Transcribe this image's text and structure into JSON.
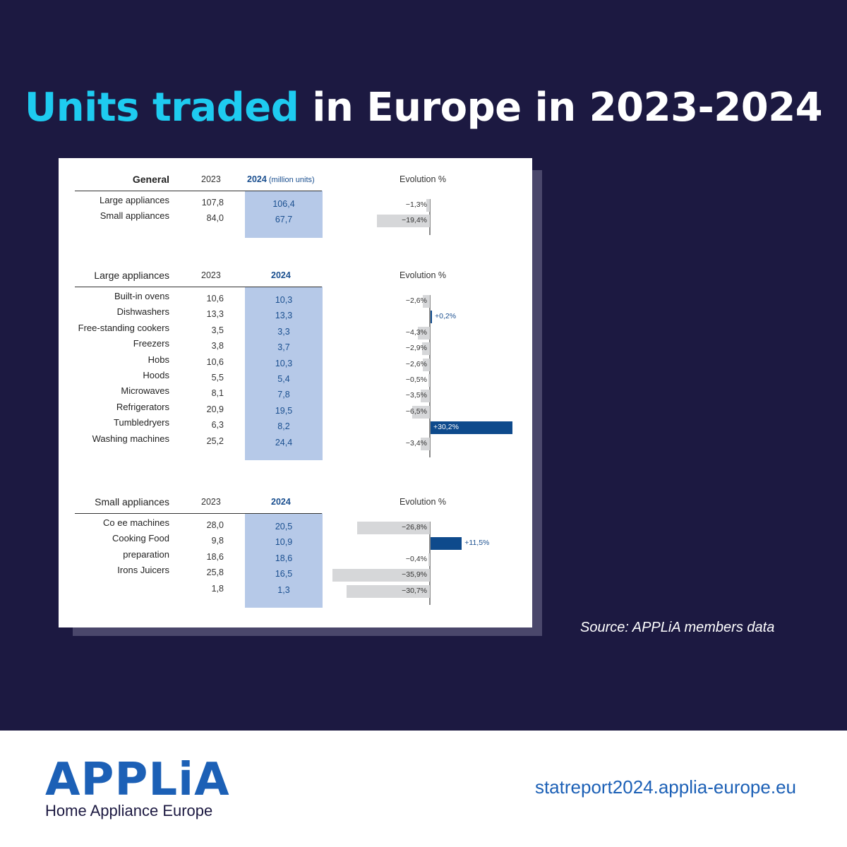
{
  "header": {
    "title_highlight": "Units traded",
    "title_rest": " in Europe in 2023-2024"
  },
  "source": "Source: APPLiA members data",
  "footer": {
    "logo_word": "APPLiA",
    "logo_sub": "Home Appliance Europe",
    "url": "statreport2024.applia-europe.eu"
  },
  "colors": {
    "background": "#1c1941",
    "title_accent": "#1ecbf0",
    "highlight_column": "#b6c9e8",
    "positive_bar": "#0e4a8c",
    "negative_bar": "#d6d7d9",
    "brand_blue": "#1c60b6"
  },
  "chart_data": {
    "type": "table",
    "evolution_header": "Evolution %",
    "sections": [
      {
        "title": "General",
        "col_2023": "2023",
        "col_2024": "2024",
        "col_2024_unit": "(million units)",
        "rows": [
          {
            "label": "Large  appliances",
            "v2023": "107,8",
            "v2024": "106,4",
            "evolution": -1.3,
            "evolution_label": "−1,3%"
          },
          {
            "label": "Small appliances",
            "v2023": "84,0",
            "v2024": "67,7",
            "evolution": -19.4,
            "evolution_label": "−19,4%"
          }
        ]
      },
      {
        "title": "Large appliances",
        "col_2023": "2023",
        "col_2024": "2024",
        "col_2024_unit": "",
        "rows": [
          {
            "label": "Built-in ovens",
            "v2023": "10,6",
            "v2024": "10,3",
            "evolution": -2.6,
            "evolution_label": "−2,6%"
          },
          {
            "label": "Dishwashers",
            "v2023": "13,3",
            "v2024": "13,3",
            "evolution": 0.2,
            "evolution_label": "+0,2%"
          },
          {
            "label": "Free-standing cookers",
            "v2023": "3,5",
            "v2024": "3,3",
            "evolution": -4.3,
            "evolution_label": "−4,3%"
          },
          {
            "label": "Freezers",
            "v2023": "3,8",
            "v2024": "3,7",
            "evolution": -2.9,
            "evolution_label": "−2,9%"
          },
          {
            "label": "Hobs",
            "v2023": "10,6",
            "v2024": "10,3",
            "evolution": -2.6,
            "evolution_label": "−2,6%"
          },
          {
            "label": "Hoods",
            "v2023": "5,5",
            "v2024": "5,4",
            "evolution": -0.5,
            "evolution_label": "−0,5%"
          },
          {
            "label": "Microwaves",
            "v2023": "8,1",
            "v2024": "7,8",
            "evolution": -3.5,
            "evolution_label": "−3,5%"
          },
          {
            "label": "Refrigerators",
            "v2023": "20,9",
            "v2024": "19,5",
            "evolution": -6.5,
            "evolution_label": "−6,5%"
          },
          {
            "label": "Tumbledryers",
            "v2023": "6,3",
            "v2024": "8,2",
            "evolution": 30.2,
            "evolution_label": "+30,2%"
          },
          {
            "label": "Washing machines",
            "v2023": "25,2",
            "v2024": "24,4",
            "evolution": -3.4,
            "evolution_label": "−3,4%"
          }
        ]
      },
      {
        "title": "Small appliances",
        "col_2023": "2023",
        "col_2024": "2024",
        "col_2024_unit": "",
        "rows": [
          {
            "label": "Co ee machines",
            "v2023": "28,0",
            "v2024": "20,5",
            "evolution": -26.8,
            "evolution_label": "−26,8%"
          },
          {
            "label": "Cooking Food",
            "v2023": "9,8",
            "v2024": "10,9",
            "evolution": 11.5,
            "evolution_label": "+11,5%"
          },
          {
            "label": "preparation",
            "v2023": "18,6",
            "v2024": "18,6",
            "evolution": -0.4,
            "evolution_label": "−0,4%"
          },
          {
            "label": "Irons Juicers",
            "v2023": "25,8",
            "v2024": "16,5",
            "evolution": -35.9,
            "evolution_label": "−35,9%"
          },
          {
            "label": "",
            "v2023": "1,8",
            "v2024": "1,3",
            "evolution": -30.7,
            "evolution_label": "−30,7%"
          }
        ]
      }
    ]
  }
}
